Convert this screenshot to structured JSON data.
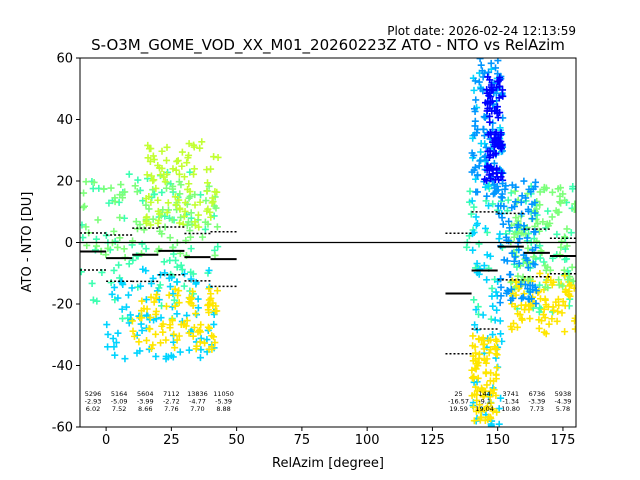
{
  "plot_date": "Plot date: 2026-02-24 12:13:59",
  "colors": {
    "hline": "#000000",
    "marker_palette": [
      "#0000ff",
      "#0096ff",
      "#00d4ff",
      "#3cffb0",
      "#7dff7a",
      "#c2ff33",
      "#ffe600",
      "#ffa500"
    ]
  },
  "chart_data": {
    "type": "scatter",
    "title": "S-O3M_GOME_VOD_XX_M01_20260223Z ATO - NTO vs RelAzim",
    "xlabel": "RelAzim [degree]",
    "ylabel": "ATO - NTO [DU]",
    "xlim": [
      -10,
      180
    ],
    "ylim": [
      -60,
      60
    ],
    "xticks": [
      0,
      25,
      50,
      75,
      100,
      125,
      150,
      175
    ],
    "yticks": [
      -60,
      -40,
      -20,
      0,
      20,
      40,
      60
    ],
    "reference_line_y": 0,
    "bins": [
      {
        "x": -5,
        "n": "5296",
        "mean": "-2.93",
        "std": "6.02",
        "mean_v": -2.93,
        "std_v": 6.02
      },
      {
        "x": 5,
        "n": "5164",
        "mean": "-5.09",
        "std": "7.52",
        "mean_v": -5.09,
        "std_v": 7.52
      },
      {
        "x": 15,
        "n": "5604",
        "mean": "-3.99",
        "std": "8.66",
        "mean_v": -3.99,
        "std_v": 8.66
      },
      {
        "x": 25,
        "n": "7112",
        "mean": "-2.72",
        "std": "7.76",
        "mean_v": -2.72,
        "std_v": 7.76
      },
      {
        "x": 35,
        "n": "13836",
        "mean": "-4.77",
        "std": "7.70",
        "mean_v": -4.77,
        "std_v": 7.7
      },
      {
        "x": 45,
        "n": "11050",
        "mean": "-5.39",
        "std": "8.88",
        "mean_v": -5.39,
        "std_v": 8.88
      },
      {
        "x": 135,
        "n": "25",
        "mean": "-16.57",
        "std": "19.59",
        "mean_v": -16.57,
        "std_v": 19.59
      },
      {
        "x": 145,
        "n": "144",
        "mean": "-9.1",
        "std": "19.04",
        "mean_v": -9.1,
        "std_v": 19.04
      },
      {
        "x": 155,
        "n": "3741",
        "mean": "-1.34",
        "std": "10.80",
        "mean_v": -1.34,
        "std_v": 10.8
      },
      {
        "x": 165,
        "n": "6736",
        "mean": "-3.39",
        "std": "7.73",
        "mean_v": -3.39,
        "std_v": 7.73
      },
      {
        "x": 175,
        "n": "5938",
        "mean": "-4.39",
        "std": "5.78",
        "mean_v": -4.39,
        "std_v": 5.78
      }
    ],
    "scatter_clusters": [
      {
        "x_range": [
          -10,
          43
        ],
        "y_range": [
          -25,
          23
        ],
        "color": "#3cffb0"
      },
      {
        "x_range": [
          -10,
          43
        ],
        "y_range": [
          -5,
          20
        ],
        "color": "#7dff7a"
      },
      {
        "x_range": [
          0,
          43
        ],
        "y_range": [
          -38,
          -8
        ],
        "color": "#00d4ff"
      },
      {
        "x_range": [
          10,
          43
        ],
        "y_range": [
          -35,
          -15
        ],
        "color": "#ffe600"
      },
      {
        "x_range": [
          15,
          43
        ],
        "y_range": [
          5,
          34
        ],
        "color": "#c2ff33"
      },
      {
        "x_range": [
          138,
          180
        ],
        "y_range": [
          -25,
          20
        ],
        "color": "#3cffb0"
      },
      {
        "x_range": [
          140,
          152
        ],
        "y_range": [
          -60,
          60
        ],
        "color": "#00d4ff"
      },
      {
        "x_range": [
          140,
          152
        ],
        "y_range": [
          15,
          60
        ],
        "color": "#0096ff"
      },
      {
        "x_range": [
          145,
          152
        ],
        "y_range": [
          20,
          54
        ],
        "color": "#0000ff"
      },
      {
        "x_range": [
          140,
          150
        ],
        "y_range": [
          -58,
          -30
        ],
        "color": "#ffe600"
      },
      {
        "x_range": [
          155,
          180
        ],
        "y_range": [
          -30,
          -10
        ],
        "color": "#ffe600"
      },
      {
        "x_range": [
          155,
          180
        ],
        "y_range": [
          -15,
          18
        ],
        "color": "#7dff7a"
      },
      {
        "x_range": [
          150,
          165
        ],
        "y_range": [
          -20,
          20
        ],
        "color": "#0096ff"
      }
    ]
  }
}
